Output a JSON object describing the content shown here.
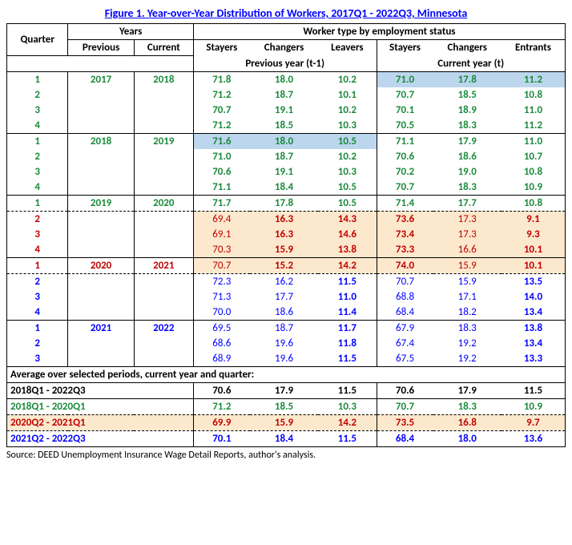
{
  "title": "Figure 1. Year-over-Year Distribution of Workers, 2017Q1 - 2022Q3, Minnesota",
  "headers": {
    "quarter": "Quarter",
    "years": "Years",
    "worker_type": "Worker type by employment status",
    "previous": "Previous",
    "current": "Current",
    "stayers": "Stayers",
    "changers": "Changers",
    "leavers": "Leavers",
    "entrants": "Entrants",
    "prev_year": "Previous year (t-1)",
    "curr_year": "Current year (t)"
  },
  "rows": [
    {
      "q": "1",
      "prev": "2017",
      "curr": "2018",
      "ps": "71.8",
      "pc": "18.0",
      "pl": "10.2",
      "cs": "71.0",
      "cc": "17.8",
      "ce": "11.2",
      "cls": "green",
      "qcls": "green",
      "hl_prev": false,
      "hl_curr": true,
      "bg": ""
    },
    {
      "q": "2",
      "prev": "",
      "curr": "",
      "ps": "71.2",
      "pc": "18.7",
      "pl": "10.1",
      "cs": "70.7",
      "cc": "18.5",
      "ce": "10.8",
      "cls": "green",
      "qcls": "green",
      "hl_prev": false,
      "hl_curr": false,
      "bg": ""
    },
    {
      "q": "3",
      "prev": "",
      "curr": "",
      "ps": "70.7",
      "pc": "19.1",
      "pl": "10.2",
      "cs": "70.1",
      "cc": "18.9",
      "ce": "11.0",
      "cls": "green",
      "qcls": "green",
      "hl_prev": false,
      "hl_curr": false,
      "bg": ""
    },
    {
      "q": "4",
      "prev": "",
      "curr": "",
      "ps": "71.2",
      "pc": "18.5",
      "pl": "10.3",
      "cs": "70.5",
      "cc": "18.3",
      "ce": "11.2",
      "cls": "green",
      "qcls": "green",
      "hl_prev": false,
      "hl_curr": false,
      "bg": "",
      "bb": true
    },
    {
      "q": "1",
      "prev": "2018",
      "curr": "2019",
      "ps": "71.6",
      "pc": "18.0",
      "pl": "10.5",
      "cs": "71.1",
      "cc": "17.9",
      "ce": "11.0",
      "cls": "green",
      "qcls": "green",
      "hl_prev": true,
      "hl_curr": false,
      "bg": ""
    },
    {
      "q": "2",
      "prev": "",
      "curr": "",
      "ps": "71.0",
      "pc": "18.7",
      "pl": "10.2",
      "cs": "70.6",
      "cc": "18.6",
      "ce": "10.7",
      "cls": "green",
      "qcls": "green",
      "hl_prev": false,
      "hl_curr": false,
      "bg": ""
    },
    {
      "q": "3",
      "prev": "",
      "curr": "",
      "ps": "70.6",
      "pc": "19.1",
      "pl": "10.3",
      "cs": "70.2",
      "cc": "19.0",
      "ce": "10.8",
      "cls": "green",
      "qcls": "green",
      "hl_prev": false,
      "hl_curr": false,
      "bg": ""
    },
    {
      "q": "4",
      "prev": "",
      "curr": "",
      "ps": "71.1",
      "pc": "18.4",
      "pl": "10.5",
      "cs": "70.7",
      "cc": "18.3",
      "ce": "10.9",
      "cls": "green",
      "qcls": "green",
      "hl_prev": false,
      "hl_curr": false,
      "bg": "",
      "bb": true
    },
    {
      "q": "1",
      "prev": "2019",
      "curr": "2020",
      "ps": "71.7",
      "pc": "17.8",
      "pl": "10.5",
      "cs": "71.4",
      "cc": "17.7",
      "ce": "10.8",
      "cls": "green",
      "qcls": "green",
      "hl_prev": false,
      "hl_curr": false,
      "bg": "",
      "dash": true
    }
  ],
  "rows_peach": [
    {
      "q": "2",
      "prev": "",
      "curr": "",
      "ps": "69.4",
      "pc": "16.3",
      "pl": "14.3",
      "cs": "73.6",
      "cc": "17.3",
      "ce": "9.1",
      "cls": "red",
      "qcls": "red"
    },
    {
      "q": "3",
      "prev": "",
      "curr": "",
      "ps": "69.1",
      "pc": "16.3",
      "pl": "14.6",
      "cs": "73.4",
      "cc": "17.3",
      "ce": "9.3",
      "cls": "red",
      "qcls": "red"
    },
    {
      "q": "4",
      "prev": "",
      "curr": "",
      "ps": "70.3",
      "pc": "15.9",
      "pl": "13.8",
      "cs": "73.3",
      "cc": "16.6",
      "ce": "10.1",
      "cls": "red",
      "qcls": "red",
      "bb": true
    },
    {
      "q": "1",
      "prev": "2020",
      "curr": "2021",
      "ps": "70.7",
      "pc": "15.2",
      "pl": "14.2",
      "cs": "74.0",
      "cc": "15.9",
      "ce": "10.1",
      "cls": "red",
      "qcls": "red",
      "dash": true
    }
  ],
  "rows_blue": [
    {
      "q": "2",
      "prev": "",
      "curr": "",
      "ps": "72.3",
      "pc": "16.2",
      "pl": "11.5",
      "cs": "70.7",
      "cc": "15.9",
      "ce": "13.5",
      "cls": "blue",
      "qcls": "blue"
    },
    {
      "q": "3",
      "prev": "",
      "curr": "",
      "ps": "71.3",
      "pc": "17.7",
      "pl": "11.0",
      "cs": "68.8",
      "cc": "17.1",
      "ce": "14.0",
      "cls": "blue",
      "qcls": "blue"
    },
    {
      "q": "4",
      "prev": "",
      "curr": "",
      "ps": "70.0",
      "pc": "18.6",
      "pl": "11.4",
      "cs": "68.4",
      "cc": "18.2",
      "ce": "13.4",
      "cls": "blue",
      "qcls": "blue",
      "bb": true
    },
    {
      "q": "1",
      "prev": "2021",
      "curr": "2022",
      "ps": "69.5",
      "pc": "18.7",
      "pl": "11.7",
      "cs": "67.9",
      "cc": "18.3",
      "ce": "13.8",
      "cls": "blue",
      "qcls": "blue"
    },
    {
      "q": "2",
      "prev": "",
      "curr": "",
      "ps": "68.6",
      "pc": "19.6",
      "pl": "11.8",
      "cs": "67.4",
      "cc": "19.2",
      "ce": "13.4",
      "cls": "blue",
      "qcls": "blue"
    },
    {
      "q": "3",
      "prev": "",
      "curr": "",
      "ps": "68.9",
      "pc": "19.6",
      "pl": "11.5",
      "cs": "67.5",
      "cc": "19.2",
      "ce": "13.3",
      "cls": "blue",
      "qcls": "blue"
    }
  ],
  "avg_header": "Average over selected periods, current year and quarter:",
  "avg_rows": [
    {
      "label": "2018Q1 - 2022Q3",
      "ps": "70.6",
      "pc": "17.9",
      "pl": "11.5",
      "cs": "70.6",
      "cc": "17.9",
      "ce": "11.5",
      "cls": "blackb",
      "bg": ""
    },
    {
      "label": "2018Q1 - 2020Q1",
      "ps": "71.2",
      "pc": "18.5",
      "pl": "10.3",
      "cs": "70.7",
      "cc": "18.3",
      "ce": "10.9",
      "cls": "green",
      "bg": "",
      "dash": true
    },
    {
      "label": "2020Q2 - 2021Q1",
      "ps": "69.9",
      "pc": "15.9",
      "pl": "14.2",
      "cs": "73.5",
      "cc": "16.8",
      "ce": "9.7",
      "cls": "red",
      "bg": "bg-peach",
      "dash": true
    },
    {
      "label": "2021Q2 - 2022Q3",
      "ps": "70.1",
      "pc": "18.4",
      "pl": "11.5",
      "cs": "68.4",
      "cc": "18.0",
      "ce": "13.6",
      "cls": "blue",
      "bg": ""
    }
  ],
  "source": "Source: DEED Unemployment Insurance Wage Detail Reports, author's analysis.",
  "colors": {
    "green": "#1a8a3a",
    "blue": "#0000ff",
    "red": "#c00000",
    "bg_blue": "#bcd6ee",
    "bg_peach": "#fce8cc"
  }
}
